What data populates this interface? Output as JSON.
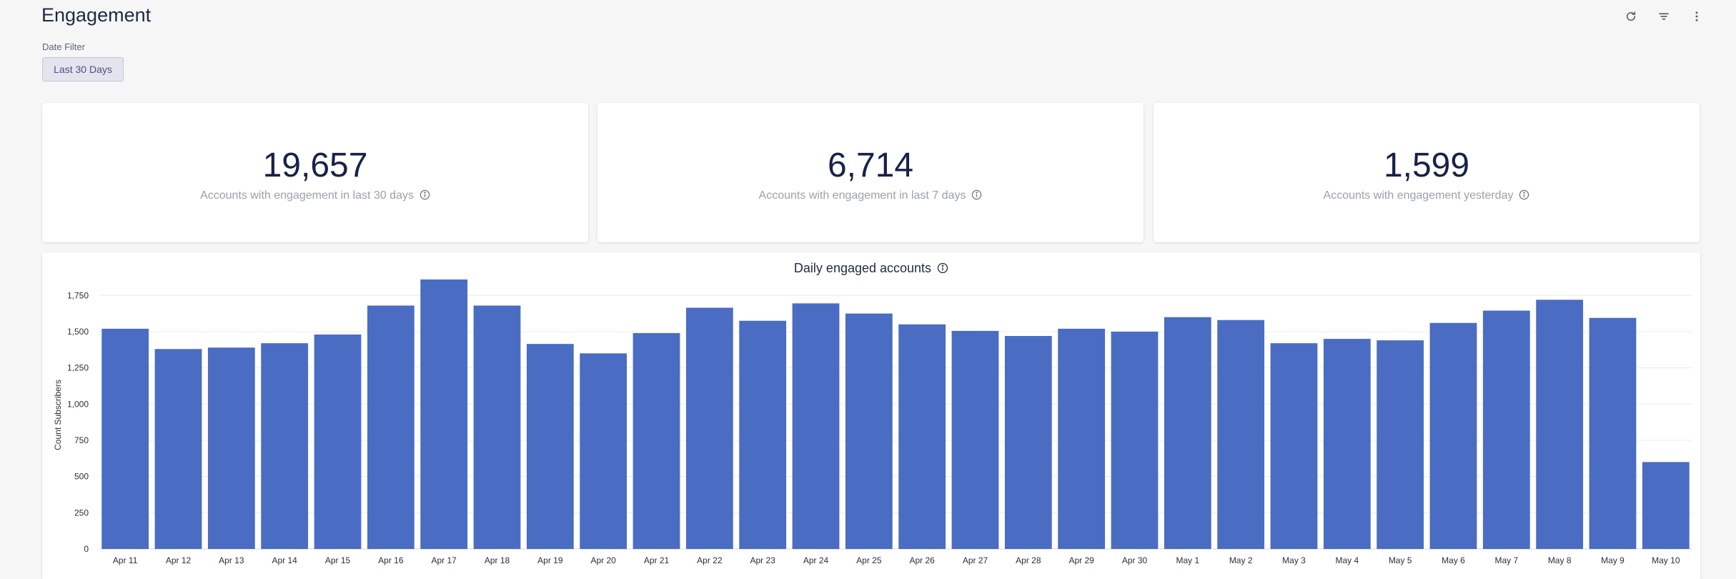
{
  "header": {
    "title": "Engagement"
  },
  "toolbar": {
    "refresh_icon": "refresh-icon",
    "filter_icon": "filter-icon",
    "more_icon": "more-vertical-icon"
  },
  "date_filter": {
    "label": "Date Filter",
    "value": "Last 30 Days"
  },
  "kpis": [
    {
      "value": "19,657",
      "label": "Accounts with engagement in last 30 days"
    },
    {
      "value": "6,714",
      "label": "Accounts with engagement in last 7 days"
    },
    {
      "value": "1,599",
      "label": "Accounts with engagement yesterday"
    }
  ],
  "colors": {
    "bar": "#4a6cc3",
    "grid": "#ececec"
  },
  "chart_data": {
    "type": "bar",
    "title": "Daily engaged accounts",
    "xlabel": "",
    "ylabel": "Count Subscribers",
    "ylim": [
      0,
      1850
    ],
    "yticks": [
      0,
      250,
      500,
      750,
      1000,
      1250,
      1500,
      1750
    ],
    "ytick_labels": [
      "0",
      "250",
      "500",
      "750",
      "1,000",
      "1,250",
      "1,500",
      "1,750"
    ],
    "grid": true,
    "categories": [
      "Apr 11",
      "Apr 12",
      "Apr 13",
      "Apr 14",
      "Apr 15",
      "Apr 16",
      "Apr 17",
      "Apr 18",
      "Apr 19",
      "Apr 20",
      "Apr 21",
      "Apr 22",
      "Apr 23",
      "Apr 24",
      "Apr 25",
      "Apr 26",
      "Apr 27",
      "Apr 28",
      "Apr 29",
      "Apr 30",
      "May 1",
      "May 2",
      "May 3",
      "May 4",
      "May 5",
      "May 6",
      "May 7",
      "May 8",
      "May 9",
      "May 10"
    ],
    "values": [
      1520,
      1380,
      1390,
      1420,
      1480,
      1680,
      1860,
      1680,
      1415,
      1350,
      1490,
      1665,
      1575,
      1695,
      1625,
      1550,
      1505,
      1470,
      1520,
      1500,
      1600,
      1580,
      1420,
      1450,
      1440,
      1560,
      1645,
      1720,
      1595,
      600
    ]
  }
}
